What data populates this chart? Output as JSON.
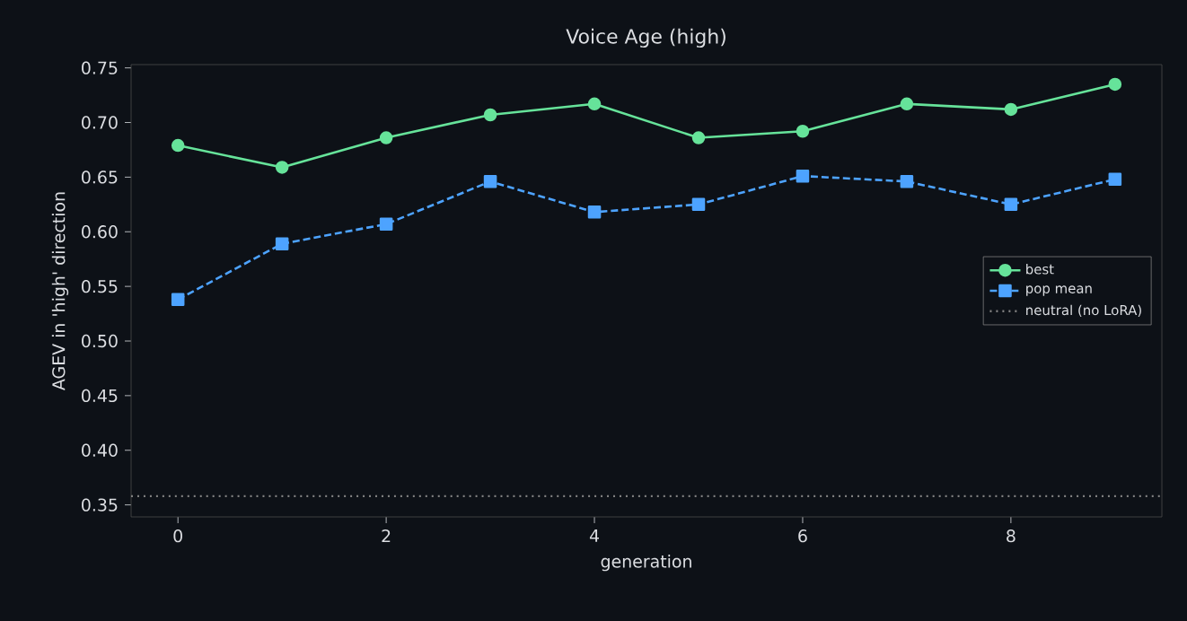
{
  "chart_data": {
    "type": "line",
    "title": "Voice Age (high)",
    "xlabel": "generation",
    "ylabel": "AGEV in 'high' direction",
    "x": [
      0,
      1,
      2,
      3,
      4,
      5,
      6,
      7,
      8,
      9
    ],
    "series": [
      {
        "name": "best",
        "color": "#66e39a",
        "marker": "circle",
        "line_style": "solid",
        "values": [
          0.679,
          0.659,
          0.686,
          0.707,
          0.717,
          0.686,
          0.692,
          0.717,
          0.712,
          0.735
        ]
      },
      {
        "name": "pop mean",
        "color": "#4da3ff",
        "marker": "square",
        "line_style": "dashed",
        "values": [
          0.538,
          0.589,
          0.607,
          0.646,
          0.618,
          0.625,
          0.651,
          0.646,
          0.625,
          0.648
        ]
      }
    ],
    "ref_lines": [
      {
        "axis": "y",
        "value": 0.358,
        "label": "neutral (no LoRA)",
        "color": "#808080",
        "line_style": "dotted"
      }
    ],
    "xlim": [
      -0.45,
      9.45
    ],
    "ylim": [
      0.339,
      0.753
    ],
    "xticks": [
      0,
      2,
      4,
      6,
      8
    ],
    "yticks": [
      {
        "value": 0.35,
        "label": "0.35"
      },
      {
        "value": 0.4,
        "label": "0.40"
      },
      {
        "value": 0.45,
        "label": "0.45"
      },
      {
        "value": 0.5,
        "label": "0.50"
      },
      {
        "value": 0.55,
        "label": "0.55"
      },
      {
        "value": 0.6,
        "label": "0.60"
      },
      {
        "value": 0.65,
        "label": "0.65"
      },
      {
        "value": 0.7,
        "label": "0.70"
      },
      {
        "value": 0.75,
        "label": "0.75"
      }
    ],
    "grid": false,
    "legend": "right"
  }
}
